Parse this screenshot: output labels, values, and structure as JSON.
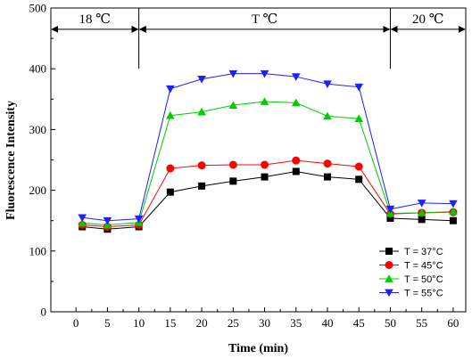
{
  "chart_data": {
    "type": "line",
    "xlabel": "Time (min)",
    "ylabel": "Fluorescence Intensity",
    "xlim": [
      -4,
      62
    ],
    "ylim": [
      0,
      500
    ],
    "x_ticks": [
      0,
      5,
      10,
      15,
      20,
      25,
      30,
      35,
      40,
      45,
      50,
      55,
      60
    ],
    "y_ticks": [
      0,
      100,
      200,
      300,
      400,
      500
    ],
    "grid": false,
    "legend_position": "lower-right",
    "x": [
      1,
      5,
      10,
      15,
      20,
      25,
      30,
      35,
      40,
      45,
      50,
      55,
      60
    ],
    "series": [
      {
        "name": "T = 37°C",
        "marker": "square",
        "color": "#000000",
        "values": [
          140,
          136,
          140,
          197,
          207,
          215,
          222,
          231,
          222,
          218,
          154,
          152,
          150
        ]
      },
      {
        "name": "T = 45°C",
        "marker": "circle",
        "color": "#ff0000",
        "values": [
          143,
          140,
          143,
          236,
          241,
          242,
          242,
          249,
          244,
          239,
          161,
          163,
          164
        ]
      },
      {
        "name": "T = 50°C",
        "marker": "triangle-up",
        "color": "#00cc00",
        "values": [
          146,
          143,
          147,
          323,
          329,
          340,
          346,
          344,
          322,
          318,
          162,
          163,
          165
        ]
      },
      {
        "name": "T = 55°C",
        "marker": "triangle-down",
        "color": "#1e1eff",
        "values": [
          155,
          150,
          153,
          367,
          383,
          392,
          392,
          387,
          375,
          370,
          169,
          179,
          178
        ]
      }
    ],
    "regions": [
      {
        "label": "18 ℃",
        "x_start": -4,
        "x_end": 10,
        "y": 465
      },
      {
        "label": "T ℃",
        "x_start": 10,
        "x_end": 50,
        "y": 465
      },
      {
        "label": "20 ℃",
        "x_start": 50,
        "x_end": 62,
        "y": 465
      }
    ]
  }
}
